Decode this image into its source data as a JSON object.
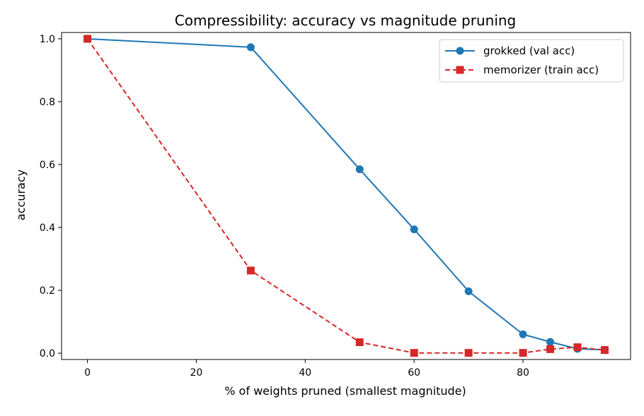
{
  "chart_data": {
    "type": "line",
    "title": "Compressibility: accuracy vs magnitude pruning",
    "xlabel": "% of weights pruned (smallest magnitude)",
    "ylabel": "accuracy",
    "xlim": [
      -4.75,
      99.75
    ],
    "ylim": [
      -0.02,
      1.02
    ],
    "xticks": [
      0,
      20,
      40,
      60,
      80
    ],
    "yticks": [
      0.0,
      0.2,
      0.4,
      0.6,
      0.8,
      1.0
    ],
    "grid": false,
    "legend_position": "top-right",
    "series": [
      {
        "name": "grokked (val acc)",
        "color": "#1f77b4",
        "linestyle": "solid",
        "marker": "circle",
        "x": [
          0,
          30,
          50,
          60,
          70,
          80,
          85,
          90,
          95
        ],
        "y": [
          1.0,
          0.973,
          0.585,
          0.394,
          0.197,
          0.06,
          0.036,
          0.014,
          0.011
        ]
      },
      {
        "name": "memorizer (train acc)",
        "color": "#d62728",
        "linestyle": "dashed",
        "marker": "square",
        "x": [
          0,
          30,
          50,
          60,
          70,
          80,
          85,
          90,
          95
        ],
        "y": [
          1.0,
          0.263,
          0.035,
          0.001,
          0.001,
          0.001,
          0.013,
          0.019,
          0.01
        ]
      }
    ]
  }
}
